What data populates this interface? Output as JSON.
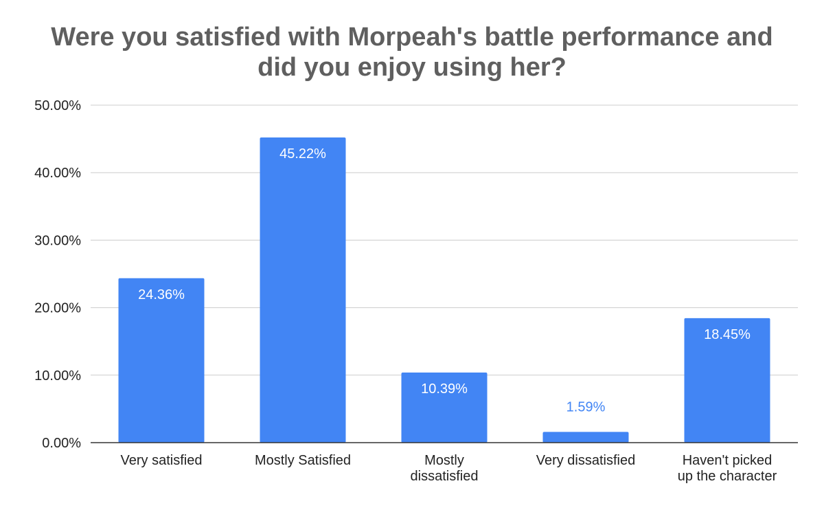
{
  "chart_data": {
    "type": "bar",
    "title_lines": [
      "Were you satisfied with Morpeah's battle performance and",
      "did you enjoy using her?"
    ],
    "categories": [
      [
        "Very satisfied"
      ],
      [
        "Mostly Satisfied"
      ],
      [
        "Mostly",
        "dissatisfied"
      ],
      [
        "Very dissatisfied"
      ],
      [
        "Haven't picked",
        "up the character"
      ]
    ],
    "values": [
      24.36,
      45.22,
      10.39,
      1.59,
      18.45
    ],
    "data_labels": [
      "24.36%",
      "45.22%",
      "10.39%",
      "1.59%",
      "18.45%"
    ],
    "y_ticks": [
      "0.00%",
      "10.00%",
      "20.00%",
      "30.00%",
      "40.00%",
      "50.00%"
    ],
    "ylim": [
      0,
      50
    ],
    "xlabel": "",
    "ylabel": "",
    "grid": true,
    "legend": "none",
    "colors": {
      "bar": "#4285f4",
      "label_inside": "#ffffff",
      "label_outside": "#4285f4",
      "grid": "#cccccc",
      "axis": "#333333",
      "title": "#5f5f5f"
    }
  }
}
